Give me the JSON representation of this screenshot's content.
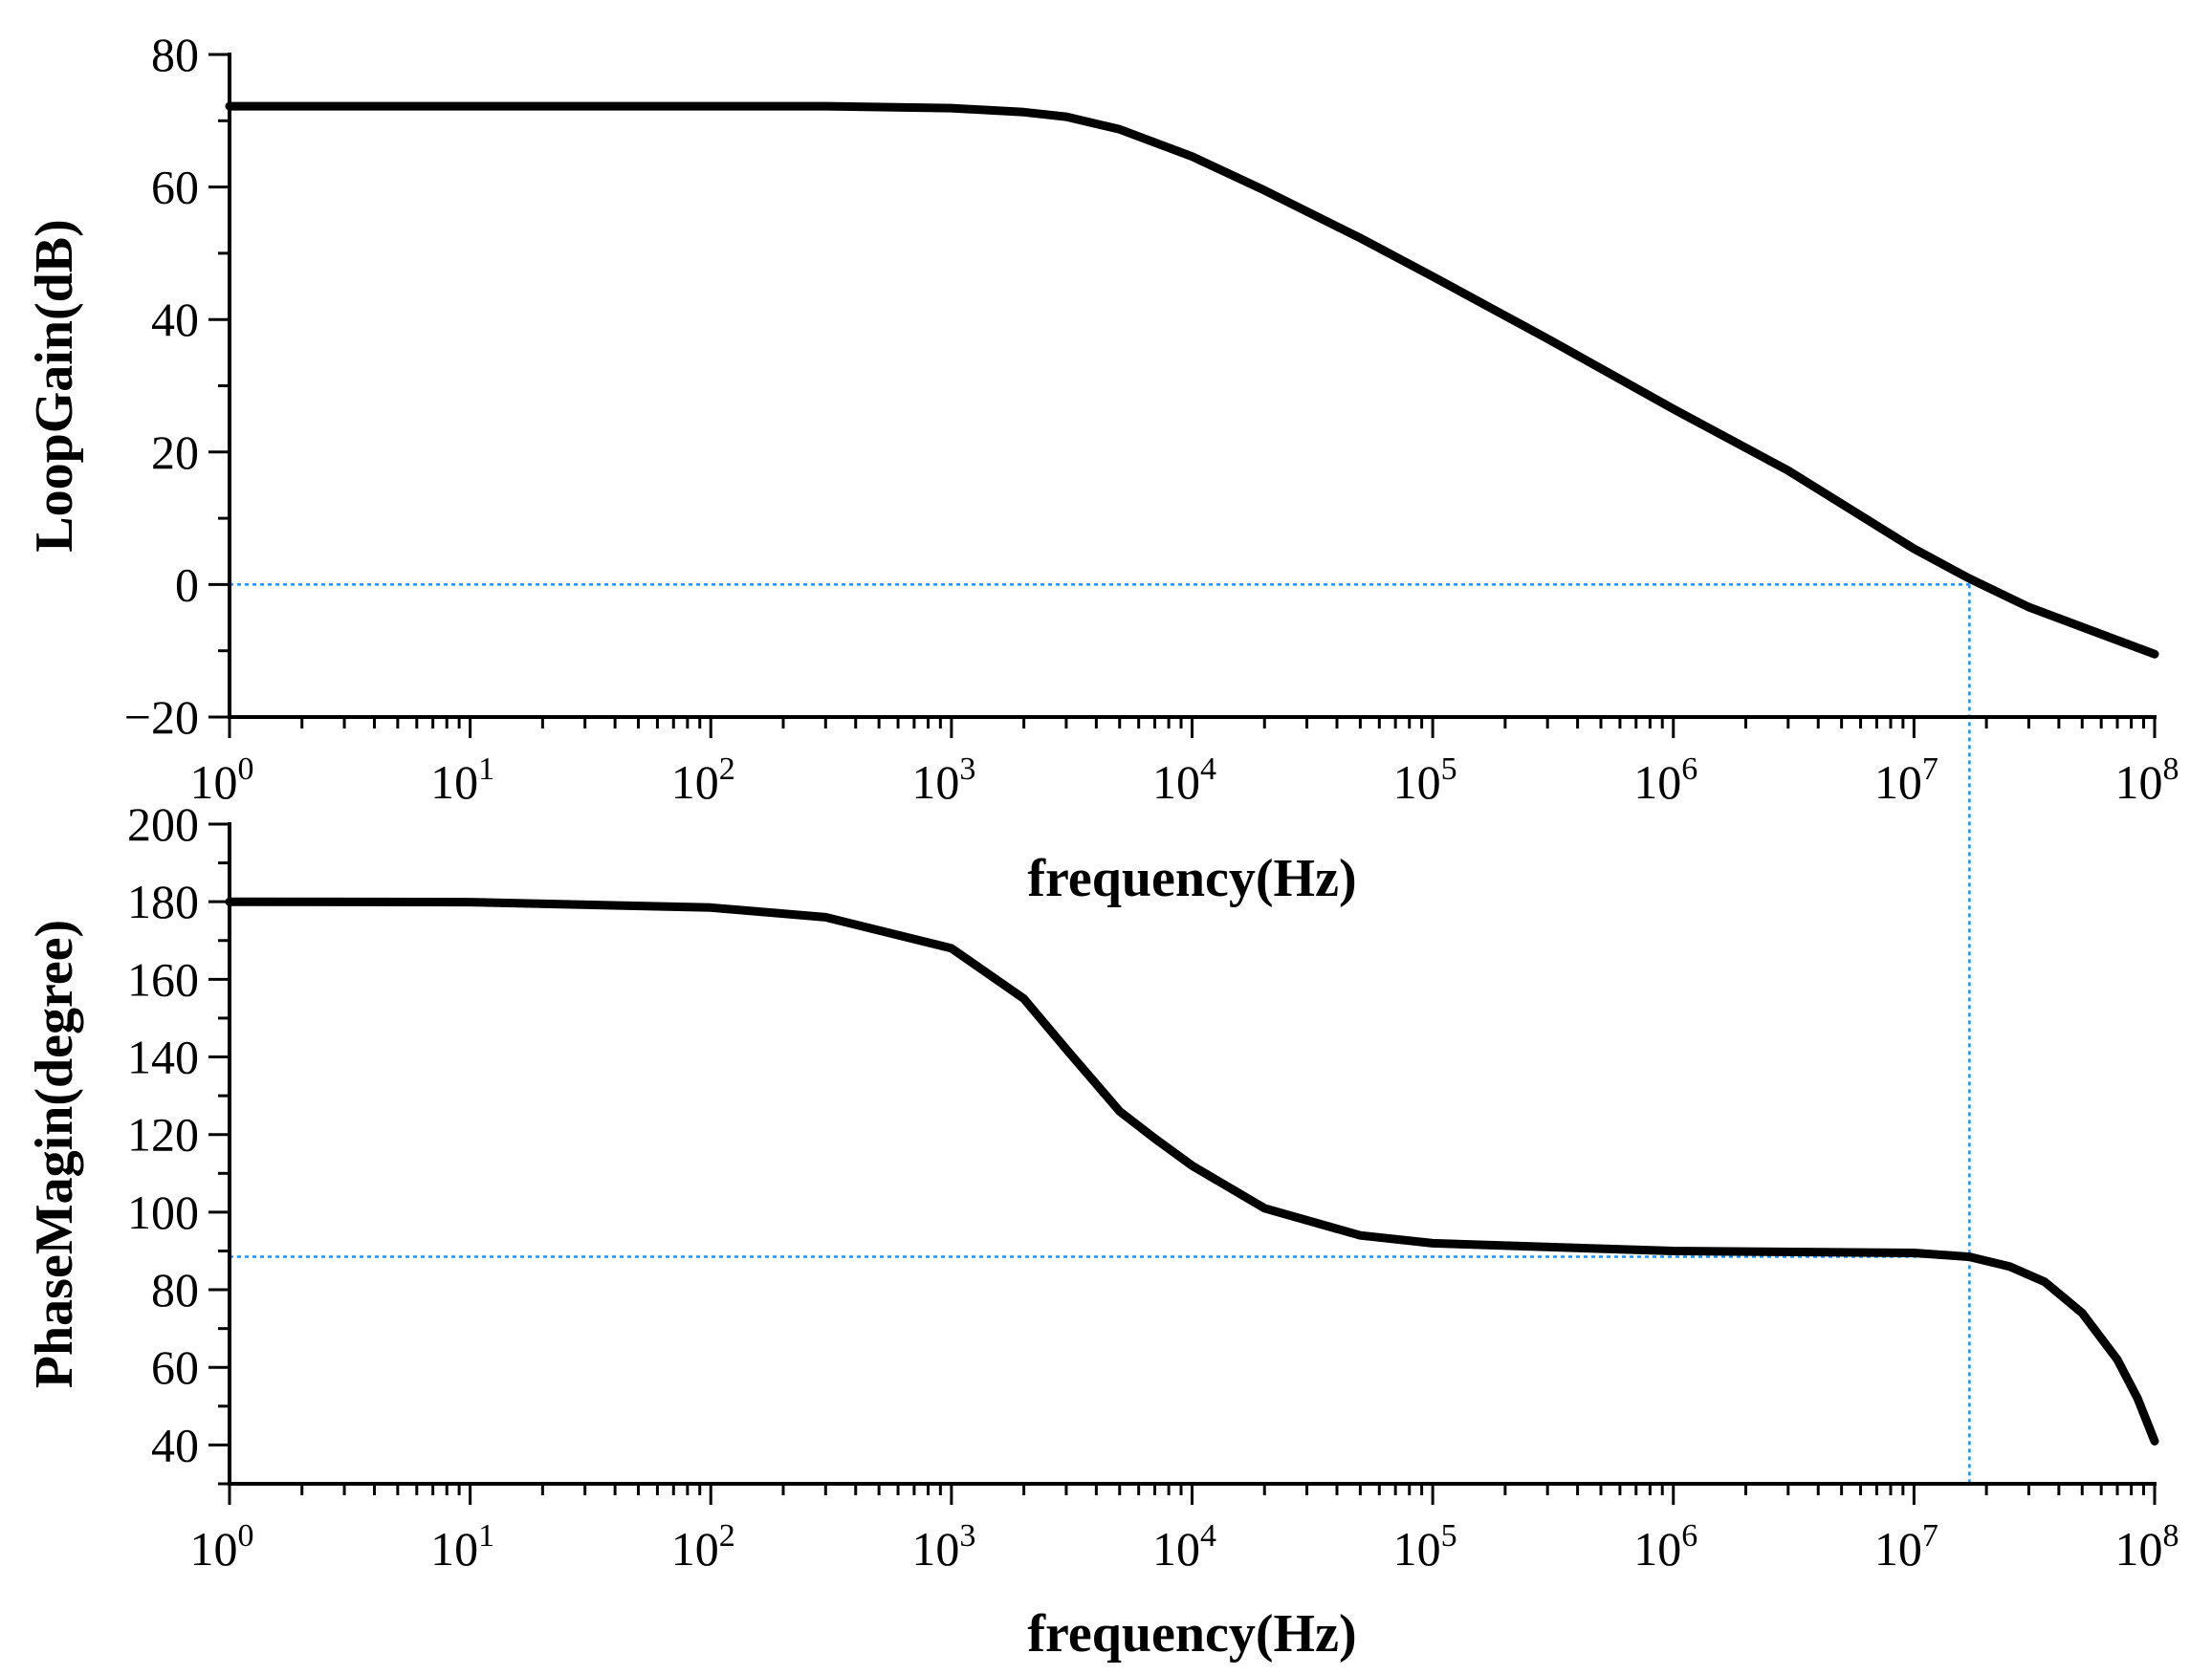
{
  "chart_data": [
    {
      "type": "line",
      "xscale": "log",
      "xlim": [
        1,
        100000000
      ],
      "ylim": [
        -20,
        80
      ],
      "xlabel": "frequency(Hz)",
      "ylabel": "LoopGain(dB)",
      "x_ticks": [
        {
          "base": "10",
          "exp": "0"
        },
        {
          "base": "10",
          "exp": "1"
        },
        {
          "base": "10",
          "exp": "2"
        },
        {
          "base": "10",
          "exp": "3"
        },
        {
          "base": "10",
          "exp": "4"
        },
        {
          "base": "10",
          "exp": "5"
        },
        {
          "base": "10",
          "exp": "6"
        },
        {
          "base": "10",
          "exp": "7"
        },
        {
          "base": "10",
          "exp": "8"
        }
      ],
      "y_ticks": [
        "80",
        "60",
        "40",
        "20",
        "0",
        "−20"
      ],
      "grid": false,
      "series": [
        {
          "color": "#000000",
          "x": [
            1,
            10,
            100,
            300,
            1000,
            2000,
            3000,
            5000,
            10000,
            20000,
            50000,
            100000,
            300000,
            1000000,
            3000000,
            10000000,
            17000000,
            30000000,
            60000000,
            100000000
          ],
          "y": [
            72.2,
            72.2,
            72.2,
            72.2,
            71.9,
            71.3,
            70.6,
            68.7,
            64.6,
            59.5,
            52.3,
            46.5,
            37.1,
            26.5,
            17.2,
            5.4,
            0.9,
            -3.4,
            -7.5,
            -10.5
          ]
        }
      ],
      "reference_lines": {
        "color": "#1e90ff",
        "y": 0,
        "x": 17000000
      }
    },
    {
      "type": "line",
      "xscale": "log",
      "xlim": [
        1,
        100000000
      ],
      "ylim": [
        30,
        200
      ],
      "xlabel": "frequency(Hz)",
      "ylabel": "PhaseMagin(degree)",
      "x_ticks": [
        {
          "base": "10",
          "exp": "0"
        },
        {
          "base": "10",
          "exp": "1"
        },
        {
          "base": "10",
          "exp": "2"
        },
        {
          "base": "10",
          "exp": "3"
        },
        {
          "base": "10",
          "exp": "4"
        },
        {
          "base": "10",
          "exp": "5"
        },
        {
          "base": "10",
          "exp": "6"
        },
        {
          "base": "10",
          "exp": "7"
        },
        {
          "base": "10",
          "exp": "8"
        }
      ],
      "y_ticks": [
        "200",
        "180",
        "160",
        "140",
        "120",
        "100",
        "80",
        "60",
        "40"
      ],
      "grid": false,
      "series": [
        {
          "color": "#000000",
          "x": [
            1,
            10,
            100,
            300,
            1000,
            2000,
            3000,
            5000,
            7000,
            10000,
            20000,
            50000,
            100000,
            1000000,
            10000000,
            17000000,
            25000000,
            35000000,
            50000000,
            70000000,
            85000000,
            100000000
          ],
          "y": [
            180,
            179.9,
            178.5,
            176,
            168,
            155,
            142,
            126,
            119,
            112,
            101,
            94,
            92,
            90,
            89.5,
            88.5,
            86,
            82,
            74,
            62,
            52,
            41
          ]
        }
      ],
      "reference_lines": {
        "color": "#1e90ff",
        "y": 88.5,
        "x": 17000000
      }
    }
  ]
}
